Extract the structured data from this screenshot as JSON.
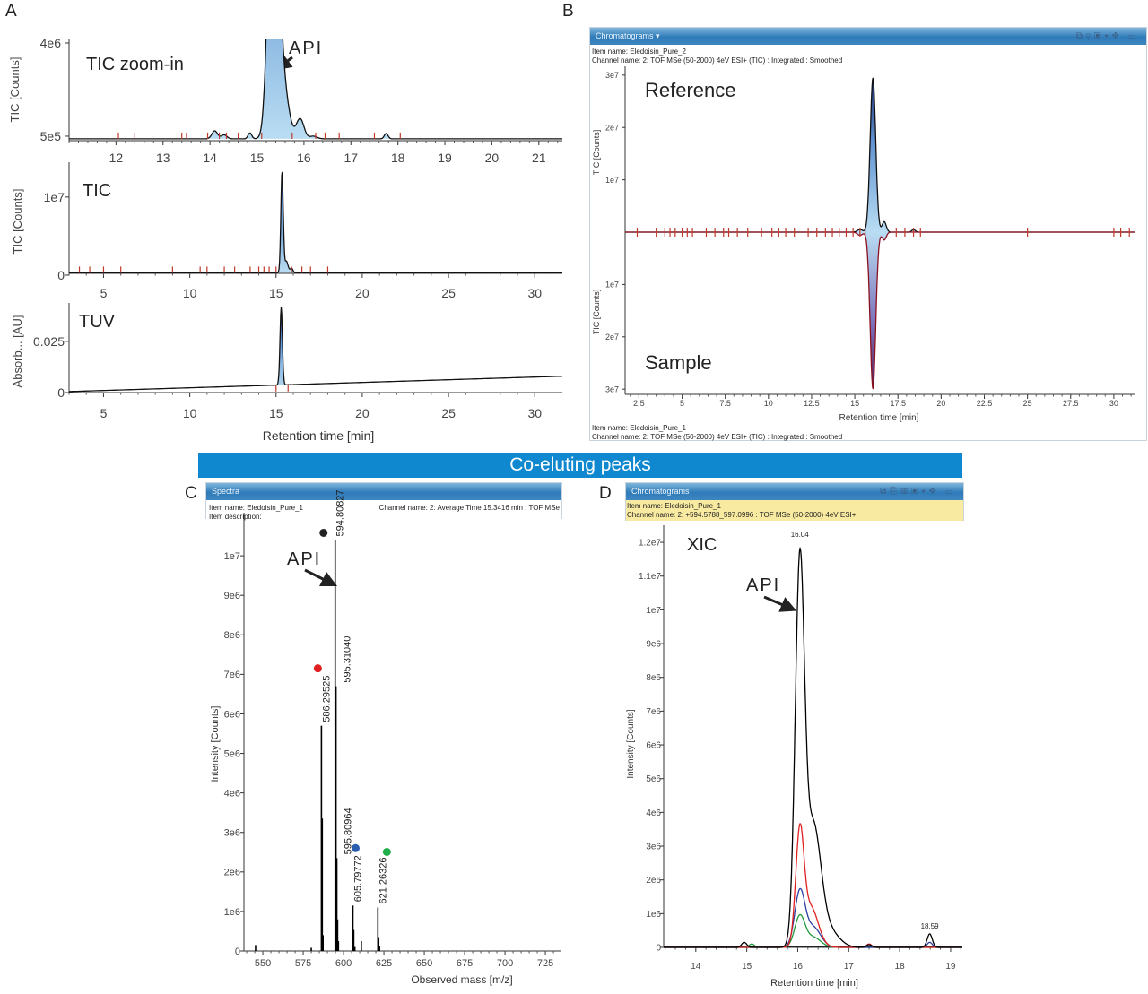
{
  "panel_letters": {
    "a": "A",
    "b": "B",
    "c": "C",
    "d": "D"
  },
  "banner": "Co-eluting peaks",
  "panel_a": {
    "zoom_label": "TIC  zoom-in",
    "api_label": "API",
    "tic_label": "TIC",
    "tuv_label": "TUV",
    "ylabel_tic": "TIC [Counts]",
    "ylabel_tuv": "Absorb... [AU]",
    "xlabel": "Retention time [min]"
  },
  "panel_b": {
    "window_title": "Chromatograms ▾",
    "toolbar_icons": [
      "zoom-icon",
      "overlay-icon",
      "export-icon",
      "dropdown-icon",
      "move-icon"
    ],
    "top_item": "Item name: Eledoisin_Pure_2",
    "top_channel": "Channel name: 2: TOF MSe (50-2000) 4eV ESI+ (TIC) : Integrated : Smoothed",
    "bottom_item": "Item name: Eledoisin_Pure_1",
    "bottom_channel": "Channel name: 2: TOF MSe (50-2000) 4eV ESI+ (TIC) : Integrated : Smoothed",
    "reference_label": "Reference",
    "sample_label": "Sample",
    "ylabel": "TIC [Counts]",
    "xlabel": "Retention time [min]"
  },
  "panel_c": {
    "window_title": "Spectra",
    "item": "Item name: Eledoisin_Pure_1",
    "description": "Item description:",
    "channel": "Channel name: 2: Average Time 15.3416 min : TOF MSe",
    "api_label": "API",
    "ylabel": "Intensity [Counts]",
    "xlabel": "Observed mass [m/z]"
  },
  "panel_d": {
    "window_title": "Chromatograms",
    "toolbar_icons": [
      "zoom-icon",
      "copy-icon",
      "table-icon",
      "export-icon",
      "dropdown-icon",
      "move-icon"
    ],
    "item": "Item name: Eledoisin_Pure_1",
    "channel": "Channel name: 2: +594.5788_597.0996 : TOF MSe (50-2000) 4eV ESI+",
    "xic_label": "XIC",
    "api_label": "API",
    "ylabel": "Intensity [Counts]",
    "xlabel": "Retention time [min]"
  },
  "colors": {
    "peak_fill_light": "#a9d2ee",
    "peak_fill_dark": "#1a2a6e",
    "integration_mark": "#c0392b",
    "banner": "#0f88cf",
    "black_trace": "#000000",
    "red_trace": "#e02020",
    "blue_trace": "#2a3fa0",
    "green_trace": "#1f9a3a"
  },
  "chart_data": [
    {
      "panel": "A",
      "title": "TIC  zoom-in",
      "type": "area",
      "xlim": [
        11,
        21.5
      ],
      "ylim": [
        330000,
        4000000
      ],
      "xticks": [
        "12",
        "13",
        "14",
        "15",
        "16",
        "17",
        "18",
        "19",
        "20",
        "21"
      ],
      "xtick_values": [
        12,
        13,
        14,
        15,
        16,
        17,
        18,
        19,
        20,
        21
      ],
      "yticks": [
        "5e5",
        "4e6"
      ],
      "ytick_values": [
        500000,
        4000000
      ],
      "ylabel": "TIC [Counts]",
      "baseline": 400000,
      "peaks": [
        [
          14.1,
          300000,
          0.06
        ],
        [
          14.3,
          150000,
          0.06
        ],
        [
          14.85,
          220000,
          0.04
        ],
        [
          15.35,
          13000000,
          0.1
        ],
        [
          15.55,
          2000000,
          0.12
        ],
        [
          15.92,
          750000,
          0.08
        ],
        [
          16.2,
          100000,
          0.08
        ],
        [
          17.75,
          200000,
          0.04
        ]
      ],
      "integration_marks": [
        12.05,
        12.4,
        13.4,
        13.5,
        13.95,
        14.2,
        14.35,
        14.6,
        15.1,
        15.75,
        16.25,
        16.45,
        16.75,
        17.5,
        18.05
      ]
    },
    {
      "panel": "A",
      "title": "TIC",
      "type": "area",
      "xlim": [
        3,
        31.6
      ],
      "ylim": [
        0,
        14000000
      ],
      "xticks": [
        "5",
        "10",
        "15",
        "20",
        "25",
        "30"
      ],
      "xtick_values": [
        5,
        10,
        15,
        20,
        25,
        30
      ],
      "yticks": [
        "0",
        "1e7"
      ],
      "ytick_values": [
        0,
        10000000
      ],
      "ylabel": "TIC [Counts]",
      "baseline": 300000,
      "peaks": [
        [
          15.35,
          13000000,
          0.07
        ],
        [
          15.6,
          1500000,
          0.1
        ],
        [
          15.9,
          600000,
          0.08
        ]
      ],
      "integration_marks": [
        3.6,
        4.2,
        5,
        6,
        9,
        10.6,
        11,
        12,
        12.6,
        13.5,
        14,
        14.3,
        14.6,
        15,
        15.9,
        16.5,
        17,
        18
      ]
    },
    {
      "panel": "A",
      "title": "TUV",
      "type": "area",
      "xlim": [
        3,
        31.6
      ],
      "ylim": [
        0,
        0.042
      ],
      "xticks": [
        "5",
        "10",
        "15",
        "20",
        "25",
        "30"
      ],
      "xtick_values": [
        5,
        10,
        15,
        20,
        25,
        30
      ],
      "yticks": [
        "0",
        "0.025"
      ],
      "ytick_values": [
        0,
        0.025
      ],
      "ylabel": "Absorb... [AU]",
      "xlabel": "Retention time [min]",
      "baseline_drift": [
        0.0005,
        0.008
      ],
      "peaks": [
        [
          15.3,
          0.038,
          0.07
        ]
      ],
      "integration_marks": [
        15.0,
        15.7
      ]
    },
    {
      "panel": "B",
      "type": "area",
      "xlim": [
        1.7,
        31.2
      ],
      "ylim": [
        -31000000,
        31000000
      ],
      "xticks": [
        "2.5",
        "5",
        "7.5",
        "10",
        "12.5",
        "15",
        "17.5",
        "20",
        "22.5",
        "25",
        "27.5",
        "30"
      ],
      "xtick_values": [
        2.5,
        5,
        7.5,
        10,
        12.5,
        15,
        17.5,
        20,
        22.5,
        25,
        27.5,
        30
      ],
      "yticks": [
        "3e7",
        "2e7",
        "1e7",
        "1e7",
        "2e7",
        "3e7"
      ],
      "ytick_values": [
        30000000,
        20000000,
        10000000,
        -10000000,
        -20000000,
        -30000000
      ],
      "ylabel": "TIC [Counts]",
      "xlabel": "Retention time [min]",
      "series": [
        {
          "name": "Reference",
          "peaks": [
            [
              15.3,
              500000,
              0.15
            ],
            [
              16.05,
              29500000,
              0.16
            ],
            [
              16.7,
              2000000,
              0.12
            ],
            [
              18.4,
              500000,
              0.1
            ]
          ]
        },
        {
          "name": "Sample",
          "peaks": [
            [
              15.3,
              -600000,
              0.15
            ],
            [
              16.05,
              -30000000,
              0.16
            ],
            [
              16.7,
              -1500000,
              0.12
            ]
          ]
        }
      ],
      "integration_marks": [
        2.4,
        3.5,
        4,
        4.3,
        4.6,
        5,
        5.3,
        5.6,
        6.4,
        6.9,
        7.4,
        7.7,
        8.2,
        8.8,
        9.6,
        10.2,
        10.6,
        11,
        11.5,
        12.3,
        12.8,
        13.3,
        13.7,
        14.1,
        14.5,
        14.9,
        15.3,
        15.6,
        17.4,
        17.9,
        18.4,
        18.8,
        25,
        30,
        30.4,
        30.9
      ]
    },
    {
      "panel": "C",
      "type": "bar",
      "xlim": [
        538.3,
        734.4
      ],
      "ylim": [
        0,
        11000000
      ],
      "xticks": [
        "550",
        "575",
        "600",
        "625",
        "650",
        "675",
        "700",
        "725"
      ],
      "xtick_values": [
        550,
        575,
        600,
        625,
        650,
        675,
        700,
        725
      ],
      "yticks": [
        "0",
        "1e6",
        "2e6",
        "3e6",
        "4e6",
        "5e6",
        "6e6",
        "7e6",
        "8e6",
        "9e6",
        "1e7"
      ],
      "ytick_values": [
        0,
        1000000,
        2000000,
        3000000,
        4000000,
        5000000,
        6000000,
        7000000,
        8000000,
        9000000,
        10000000
      ],
      "ylabel": "Intensity [Counts]",
      "xlabel": "Observed mass [m/z]",
      "sticks": [
        [
          545.5,
          150000
        ],
        [
          580,
          80000
        ],
        [
          586.3,
          5700000
        ],
        [
          586.8,
          3350000
        ],
        [
          587.3,
          400000
        ],
        [
          594.81,
          10400000
        ],
        [
          595.31,
          6700000
        ],
        [
          595.81,
          2350000
        ],
        [
          596.3,
          800000
        ],
        [
          596.8,
          250000
        ],
        [
          605.8,
          1150000
        ],
        [
          606.3,
          530000
        ],
        [
          607,
          100000
        ],
        [
          611,
          250000
        ],
        [
          621.26,
          1100000
        ],
        [
          621.76,
          350000
        ],
        [
          622.3,
          120000
        ]
      ],
      "labeled_peaks": [
        {
          "mz": 594.80827,
          "label": "594.80827",
          "intensity": 10400000,
          "marker": "#222222"
        },
        {
          "mz": 595.3104,
          "label": "595.31040",
          "intensity": 6700000,
          "marker": ""
        },
        {
          "mz": 586.29525,
          "label": "586.29525",
          "intensity": 5700000,
          "marker": "#e02020"
        },
        {
          "mz": 595.80964,
          "label": "595.80964",
          "intensity": 2350000,
          "marker": ""
        },
        {
          "mz": 605.79772,
          "label": "605.79772",
          "intensity": 1150000,
          "marker": "#2a5db0"
        },
        {
          "mz": 621.26326,
          "label": "621.26326",
          "intensity": 1100000,
          "marker": "#1fae4a"
        }
      ]
    },
    {
      "panel": "D",
      "type": "line",
      "xlim": [
        13.37,
        19.23
      ],
      "ylim": [
        0,
        12400000
      ],
      "xticks": [
        "14",
        "15",
        "16",
        "17",
        "18",
        "19"
      ],
      "xtick_values": [
        14,
        15,
        16,
        17,
        18,
        19
      ],
      "yticks": [
        "0",
        "1e6",
        "2e6",
        "3e6",
        "4e6",
        "5e6",
        "6e6",
        "7e6",
        "8e6",
        "9e6",
        "1e7",
        "1.1e7",
        "1.2e7"
      ],
      "ytick_values": [
        0,
        1000000,
        2000000,
        3000000,
        4000000,
        5000000,
        6000000,
        7000000,
        8000000,
        9000000,
        10000000,
        11000000,
        12000000
      ],
      "ylabel": "Intensity [Counts]",
      "xlabel": "Retention time [min]",
      "peak_labels": [
        {
          "x": 16.04,
          "label": "16.04",
          "y": 12000000
        },
        {
          "x": 18.59,
          "label": "18.59",
          "y": 400000
        }
      ],
      "series": [
        {
          "color": "#000000",
          "peaks": [
            [
              14.95,
              150000,
              0.05
            ],
            [
              16.04,
              11000000,
              0.09
            ],
            [
              16.3,
              3500000,
              0.15
            ],
            [
              16.6,
              500000,
              0.2
            ],
            [
              17.4,
              80000,
              0.05
            ],
            [
              18.59,
              400000,
              0.05
            ]
          ]
        },
        {
          "color": "#e02020",
          "peaks": [
            [
              16.04,
              3200000,
              0.08
            ],
            [
              16.25,
              1200000,
              0.15
            ],
            [
              17.4,
              100000,
              0.05
            ]
          ]
        },
        {
          "color": "#2a3fa0",
          "peaks": [
            [
              16.04,
              1600000,
              0.1
            ],
            [
              16.3,
              600000,
              0.15
            ],
            [
              18.59,
              150000,
              0.05
            ]
          ]
        },
        {
          "color": "#1f9a3a",
          "peaks": [
            [
              15.1,
              100000,
              0.05
            ],
            [
              16.04,
              900000,
              0.1
            ],
            [
              16.3,
              300000,
              0.15
            ]
          ]
        }
      ]
    }
  ]
}
